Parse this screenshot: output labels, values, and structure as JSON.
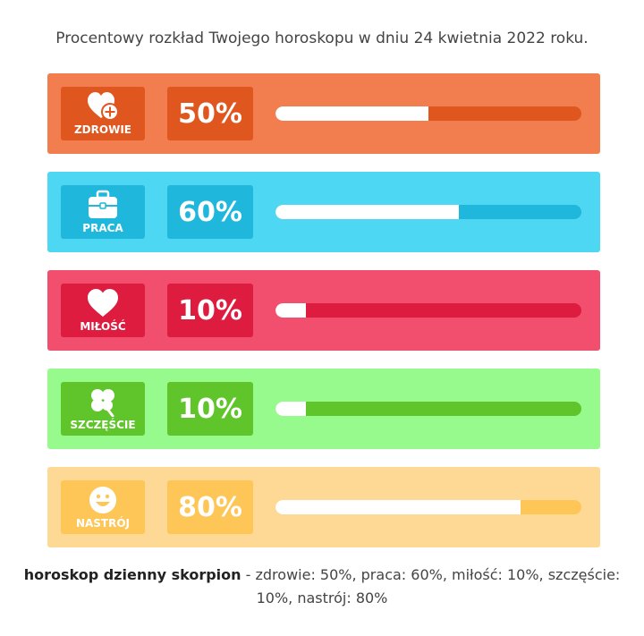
{
  "title": "Procentowy rozkład Twojego horoskopu w dniu 24 kwietnia 2022 roku.",
  "rows": [
    {
      "label": "ZDROWIE",
      "percent_text": "50%",
      "value": 0.5,
      "icon": "heart-plus-icon",
      "colors": {
        "bg": "#f27e4f",
        "box": "#e0561f",
        "track": "#e0561f"
      }
    },
    {
      "label": "PRACA",
      "percent_text": "60%",
      "value": 0.6,
      "icon": "briefcase-icon",
      "colors": {
        "bg": "#4dd7f2",
        "box": "#1fb8dc",
        "track": "#1fb8dc"
      }
    },
    {
      "label": "MIŁOŚĆ",
      "percent_text": "10%",
      "value": 0.1,
      "icon": "heart-icon",
      "colors": {
        "bg": "#f24f6e",
        "box": "#dd1c3f",
        "track": "#dd1c3f"
      }
    },
    {
      "label": "SZCZĘŚCIE",
      "percent_text": "10%",
      "value": 0.1,
      "icon": "clover-icon",
      "colors": {
        "bg": "#96fb8c",
        "box": "#5fc52b",
        "track": "#5fc52b"
      }
    },
    {
      "label": "NASTRÓJ",
      "percent_text": "80%",
      "value": 0.8,
      "icon": "smiley-icon",
      "colors": {
        "bg": "#fdd995",
        "box": "#fdc657",
        "track": "#fdc657"
      }
    }
  ],
  "summary": {
    "bold": "horoskop dzienny skorpion",
    "rest": " - zdrowie: 50%, praca: 60%, miłość: 10%, szczęście: 10%, nastrój: 80%"
  }
}
